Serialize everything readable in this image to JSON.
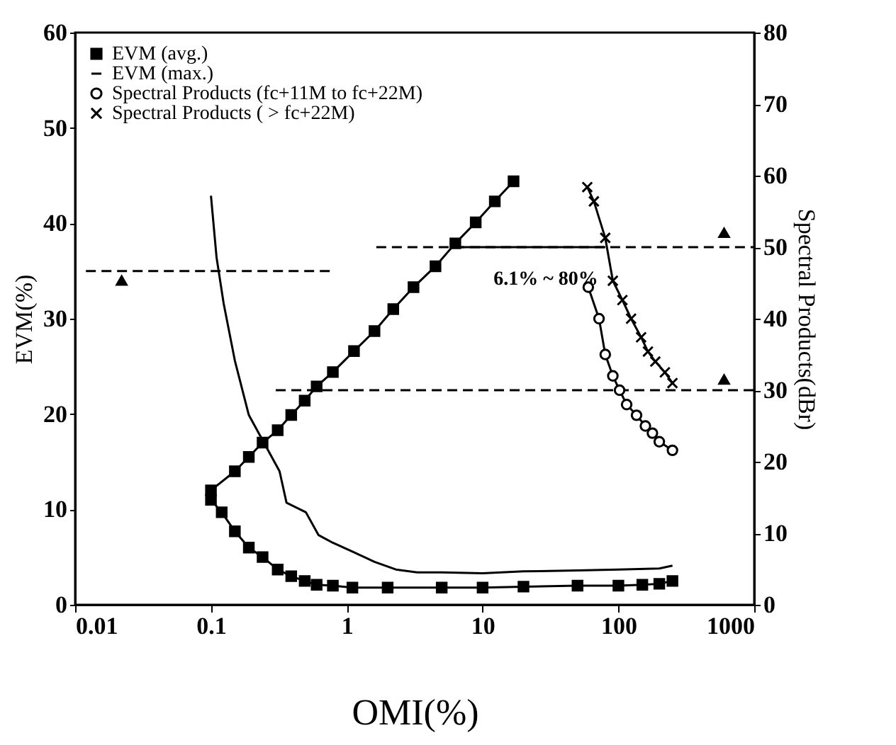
{
  "chart_data": {
    "type": "line",
    "xlabel": "OMI(%)",
    "ylabel": "EVM(%)",
    "y2label": "Spectral Products(dBr)",
    "log": "x",
    "xlim": [
      0.01,
      1000
    ],
    "xticks": [
      0.01,
      0.1,
      1,
      10,
      100,
      1000
    ],
    "ylim": [
      0,
      60
    ],
    "yticks": [
      0,
      10,
      20,
      30,
      40,
      50,
      60
    ],
    "y2lim": [
      0,
      80
    ],
    "y2ticks": [
      0,
      10,
      20,
      30,
      40,
      50,
      60,
      70,
      80
    ],
    "grid": false,
    "legend": "top left",
    "annotations": [
      "6.1% ~ 80%"
    ],
    "series": [
      {
        "name": "EVM (avg.)",
        "color": "#000000",
        "marker": "square",
        "x": [
          0.1,
          0.12,
          0.15,
          0.19,
          0.24,
          0.31,
          0.39,
          0.49,
          0.6,
          0.79,
          1.1,
          2,
          5,
          10,
          20,
          50,
          100,
          150,
          200,
          250
        ],
        "values": [
          11,
          9.7,
          7.7,
          6,
          5,
          3.7,
          3,
          2.5,
          2.1,
          2,
          1.8,
          1.8,
          1.8,
          1.8,
          1.9,
          2,
          2,
          2.1,
          2.2,
          2.5
        ]
      },
      {
        "name": "EVM (max.)",
        "color": "#000000",
        "marker": "none",
        "x": [
          0.1,
          0.11,
          0.124,
          0.15,
          0.19,
          0.32,
          0.36,
          0.5,
          0.62,
          0.79,
          1.13,
          1.6,
          2.3,
          3.3,
          5,
          10,
          20,
          50,
          100,
          200,
          250
        ],
        "values": [
          42.9,
          36.4,
          31.6,
          25.6,
          19.9,
          14,
          10.7,
          9.7,
          7.3,
          6.5,
          5.5,
          4.5,
          3.7,
          3.4,
          3.4,
          3.3,
          3.5,
          3.6,
          3.7,
          3.8,
          4.1
        ]
      },
      {
        "name": "Spectral Products (fc+11M to fc+22M)",
        "color": "#000000",
        "marker": "circle",
        "axis": "y2",
        "x": [
          60,
          72,
          80,
          91,
          102,
          115,
          136,
          158,
          178,
          200,
          250
        ],
        "values": [
          44.4,
          40,
          35,
          32,
          30,
          28,
          26.5,
          25,
          24,
          22.8,
          21.6
        ]
      },
      {
        "name": "Spectral Products ( > fc+22M)",
        "color": "#000000",
        "marker": "cross",
        "axis": "y2",
        "x": [
          59,
          66,
          80,
          91,
          107,
          124,
          147,
          165,
          187,
          220,
          250
        ],
        "values": [
          58.4,
          56.4,
          51.3,
          45.3,
          42.6,
          40,
          37.4,
          35.4,
          34,
          32.5,
          31
        ]
      },
      {
        "color": "#000000",
        "marker": "square",
        "x": [
          0.1,
          0.15,
          0.19,
          0.24,
          0.31,
          0.39,
          0.49,
          0.6,
          0.79,
          1.13,
          1.6,
          2.2,
          3.1,
          4.5,
          6.3,
          8.9,
          12.3,
          16.9
        ],
        "values": [
          12,
          14,
          15.5,
          17,
          18.3,
          19.9,
          21.4,
          22.9,
          24.4,
          26.6,
          28.7,
          31,
          33.3,
          35.5,
          37.9,
          40.1,
          42.3,
          44.4
        ]
      },
      {
        "color": "#000000",
        "marker": "none",
        "line_style": "dashed",
        "x": [
          0.012,
          0.8
        ],
        "values": [
          35,
          35
        ]
      },
      {
        "color": "#000000",
        "marker": "none",
        "line_style": "dashed",
        "axis": "y2",
        "x": [
          1.65,
          1000
        ],
        "values": [
          50,
          50
        ]
      },
      {
        "color": "#000000",
        "marker": "none",
        "line_style": "dashed",
        "axis": "y2",
        "x": [
          0.3,
          1000
        ],
        "values": [
          30,
          30
        ]
      },
      {
        "color": "#000000",
        "marker": "none",
        "axis": "y2",
        "x": [
          6.1,
          80
        ],
        "values": [
          50,
          50
        ]
      },
      {
        "type": "scatter",
        "color": "#000000",
        "marker": "triangle",
        "x": [
          0.022
        ],
        "values": [
          34
        ]
      },
      {
        "type": "scatter",
        "color": "#000000",
        "marker": "triangle",
        "axis": "y2",
        "x": [
          600,
          600
        ],
        "values": [
          52,
          31.5
        ]
      }
    ]
  }
}
